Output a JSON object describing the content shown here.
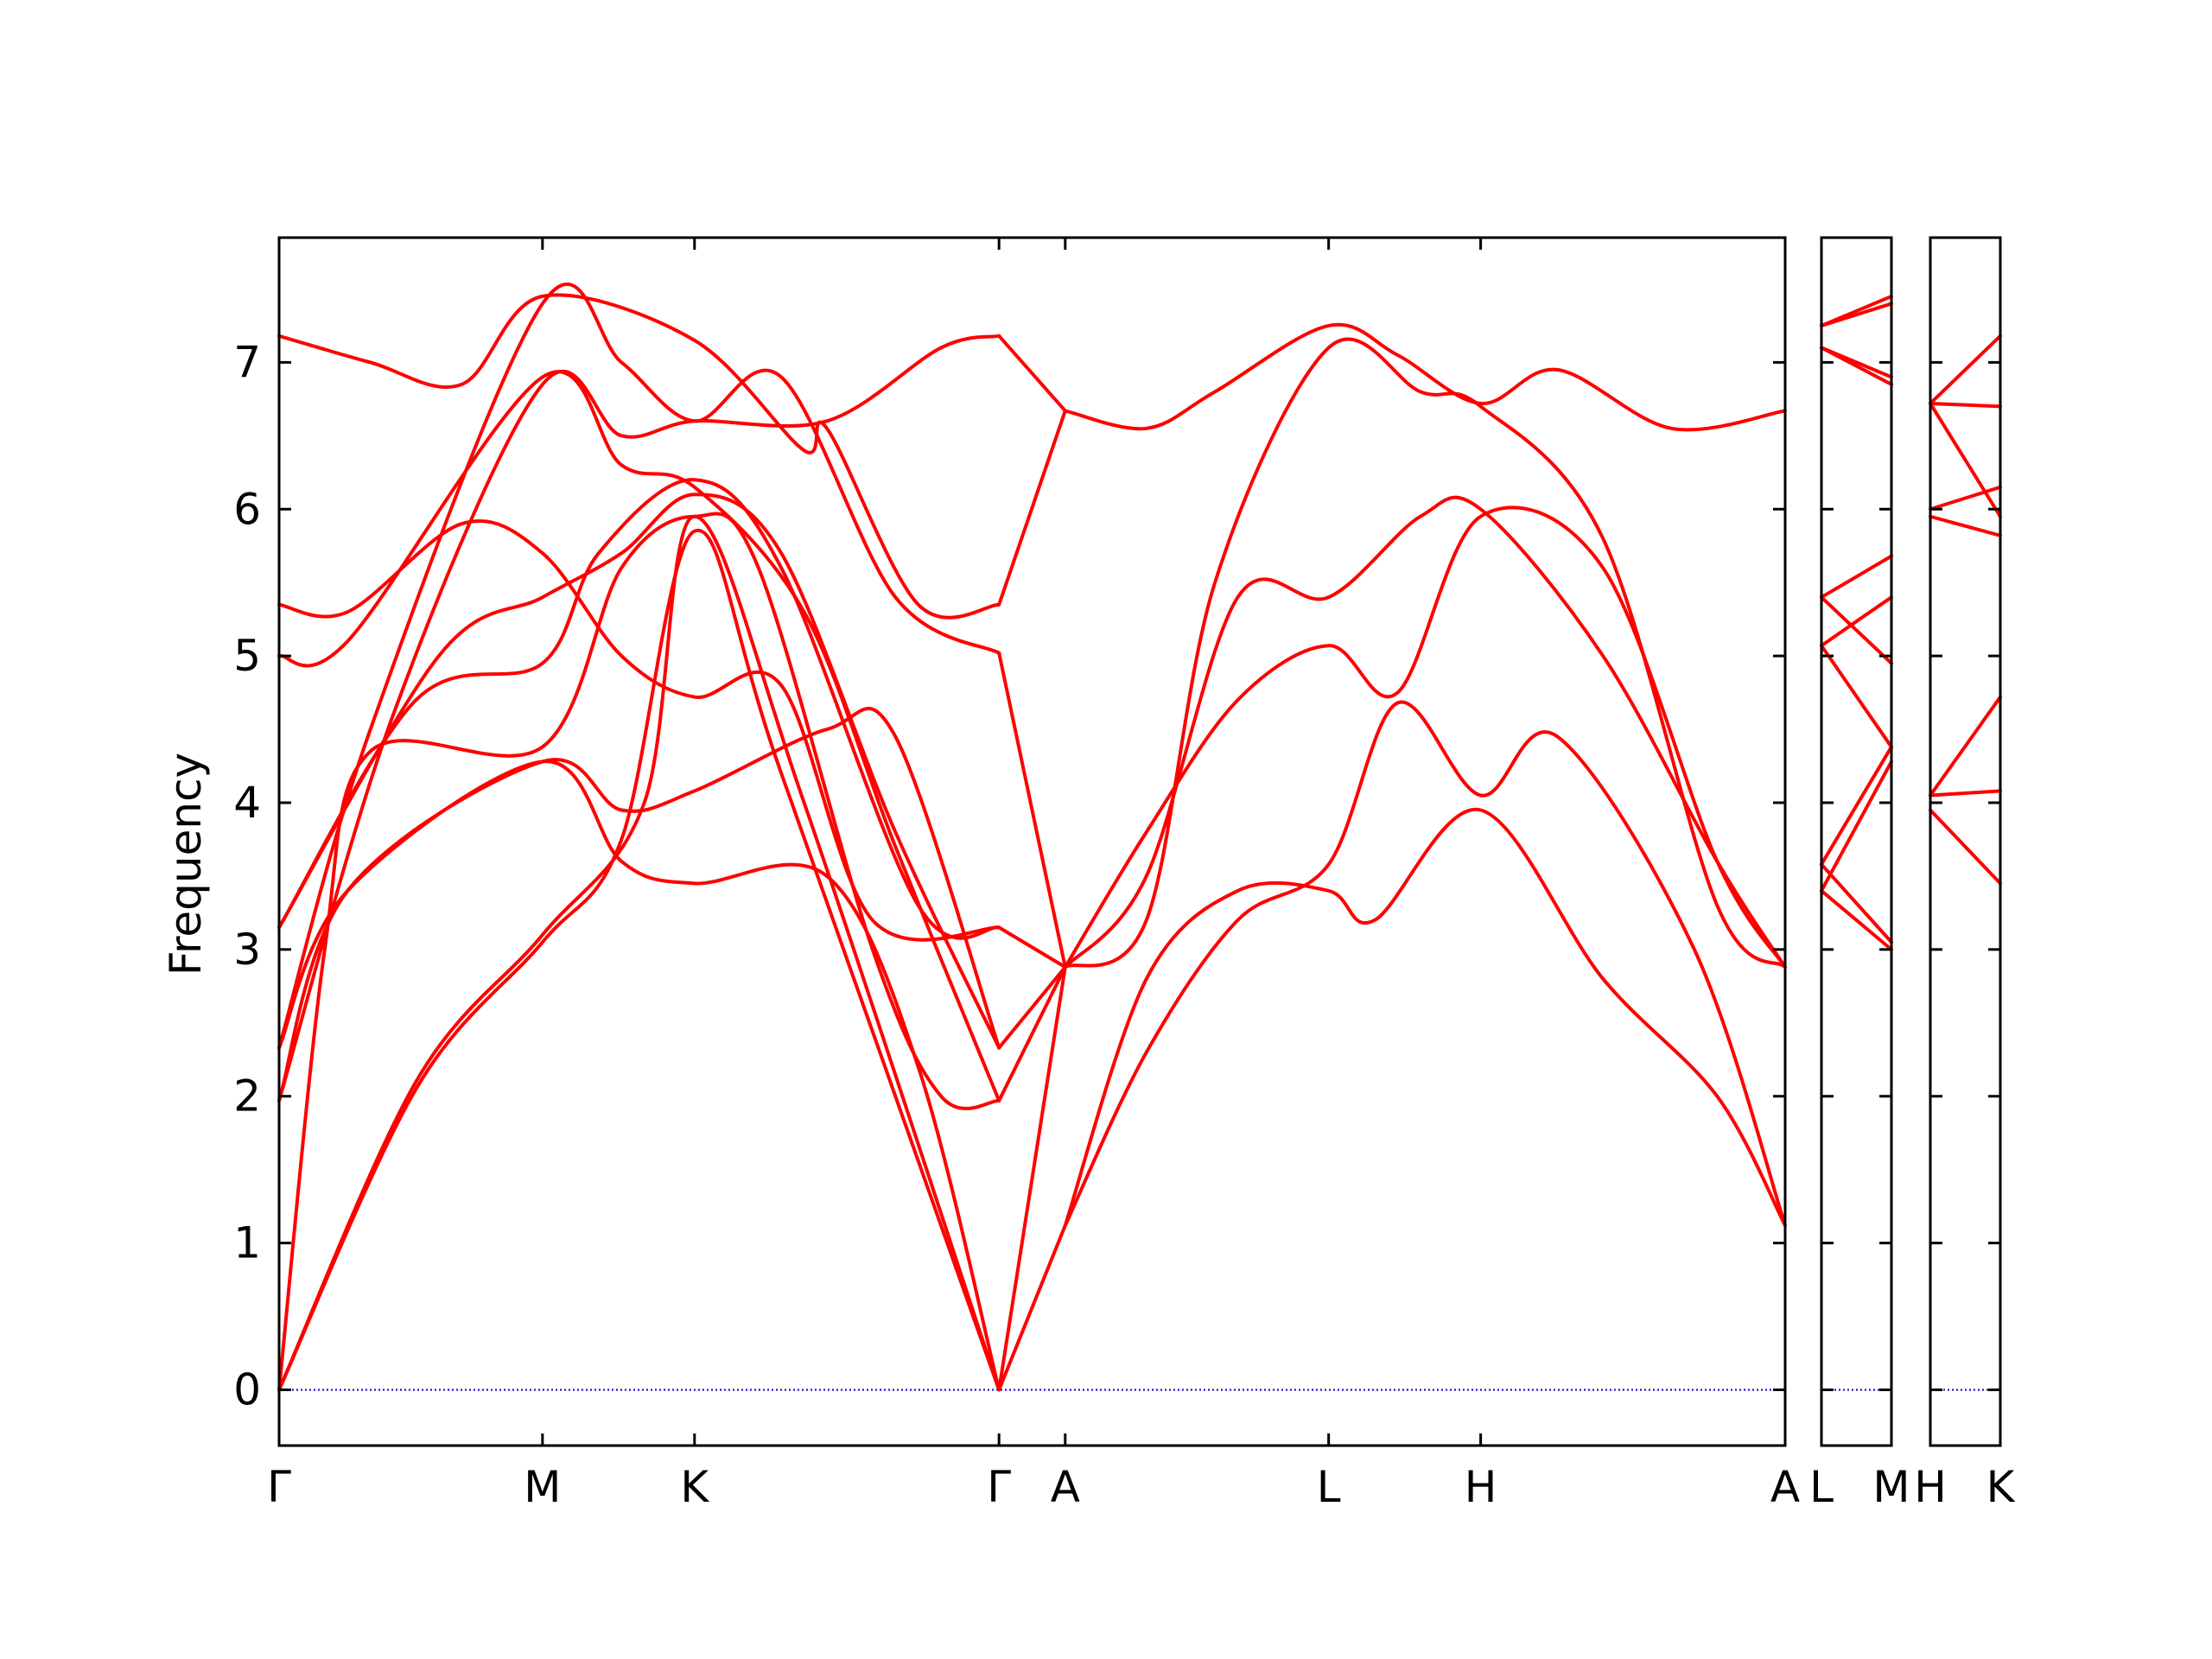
{
  "chart_data": {
    "type": "line",
    "title": "",
    "xlabel": "",
    "ylabel": "Frequency",
    "ylim": [
      -0.38,
      7.85
    ],
    "yticks": [
      0,
      1,
      2,
      3,
      4,
      5,
      6,
      7
    ],
    "grid": false,
    "legend": "none",
    "colors": {
      "bands": "#ff0000",
      "zero_line": "#0000cc",
      "axes": "#000000"
    },
    "panels": [
      {
        "labels": [
          "Γ",
          "M",
          "K",
          "Γ",
          "A",
          "L",
          "H",
          "A"
        ],
        "x": [
          0,
          0.577,
          0.91,
          1.577,
          1.722,
          2.299,
          2.632,
          3.299
        ]
      },
      {
        "labels": [
          "L",
          "M"
        ],
        "x": [
          0,
          0.145
        ]
      },
      {
        "labels": [
          "H",
          "K"
        ],
        "x": [
          0,
          0.145
        ]
      }
    ],
    "series": [
      {
        "panel": 0,
        "points": [
          [
            0,
            0
          ],
          [
            0.3,
            2.05
          ],
          [
            0.577,
            3.05
          ],
          [
            0.75,
            3.75
          ],
          [
            0.91,
            5.85
          ],
          [
            1.1,
            4.2
          ],
          [
            1.577,
            0
          ]
        ]
      },
      {
        "panel": 0,
        "points": [
          [
            0,
            0
          ],
          [
            0.3,
            2.1
          ],
          [
            0.577,
            3.1
          ],
          [
            0.8,
            4.0
          ],
          [
            0.91,
            5.95
          ],
          [
            1.15,
            4.0
          ],
          [
            1.577,
            0
          ]
        ]
      },
      {
        "panel": 0,
        "points": [
          [
            0,
            0
          ],
          [
            0.1,
            3.0
          ],
          [
            0.2,
            4.35
          ],
          [
            0.577,
            4.38
          ],
          [
            0.75,
            5.6
          ],
          [
            0.91,
            5.95
          ],
          [
            1.05,
            5.6
          ],
          [
            1.3,
            3.0
          ],
          [
            1.45,
            2.0
          ],
          [
            1.577,
            1.97
          ]
        ]
      },
      {
        "panel": 0,
        "points": [
          [
            0,
            1.97
          ],
          [
            0.15,
            3.4
          ],
          [
            0.577,
            4.28
          ],
          [
            0.75,
            3.95
          ],
          [
            0.91,
            4.08
          ],
          [
            1.2,
            4.5
          ],
          [
            1.35,
            4.45
          ],
          [
            1.577,
            2.33
          ]
        ]
      },
      {
        "panel": 0,
        "points": [
          [
            0,
            2.33
          ],
          [
            0.15,
            3.4
          ],
          [
            0.577,
            4.28
          ],
          [
            0.75,
            3.6
          ],
          [
            0.91,
            3.45
          ],
          [
            1.2,
            3.5
          ],
          [
            1.4,
            2.2
          ],
          [
            1.577,
            0
          ]
        ]
      },
      {
        "panel": 0,
        "points": [
          [
            0,
            3.15
          ],
          [
            0.3,
            4.7
          ],
          [
            0.577,
            4.95
          ],
          [
            0.7,
            5.7
          ],
          [
            0.91,
            6.2
          ],
          [
            1.1,
            5.6
          ],
          [
            1.4,
            3.3
          ],
          [
            1.577,
            3.15
          ]
        ]
      },
      {
        "panel": 0,
        "points": [
          [
            0,
            3.15
          ],
          [
            0.35,
            5.0
          ],
          [
            0.577,
            5.4
          ],
          [
            0.75,
            5.7
          ],
          [
            0.91,
            6.1
          ],
          [
            1.1,
            5.7
          ],
          [
            1.35,
            3.8
          ],
          [
            1.577,
            2.33
          ]
        ]
      },
      {
        "panel": 0,
        "points": [
          [
            0,
            5.0
          ],
          [
            0.15,
            5.1
          ],
          [
            0.577,
            6.9
          ],
          [
            0.75,
            6.3
          ],
          [
            0.91,
            6.15
          ],
          [
            1.15,
            5.3
          ],
          [
            1.35,
            3.7
          ],
          [
            1.577,
            1.97
          ]
        ]
      },
      {
        "panel": 0,
        "points": [
          [
            0,
            5.35
          ],
          [
            0.15,
            5.3
          ],
          [
            0.4,
            5.9
          ],
          [
            0.577,
            5.7
          ],
          [
            0.75,
            5.0
          ],
          [
            0.91,
            4.72
          ],
          [
            1.1,
            4.8
          ],
          [
            1.3,
            3.2
          ],
          [
            1.577,
            3.15
          ]
        ]
      },
      {
        "panel": 0,
        "points": [
          [
            0,
            7.18
          ],
          [
            0.2,
            7.0
          ],
          [
            0.4,
            6.85
          ],
          [
            0.577,
            7.45
          ],
          [
            0.91,
            7.15
          ],
          [
            1.15,
            6.4
          ],
          [
            1.2,
            6.55
          ],
          [
            1.4,
            5.35
          ],
          [
            1.577,
            5.35
          ]
        ]
      },
      {
        "panel": 0,
        "points": [
          [
            0,
            2.33
          ],
          [
            0.2,
            4.5
          ],
          [
            0.577,
            7.4
          ],
          [
            0.75,
            7.0
          ],
          [
            0.91,
            6.6
          ],
          [
            1.1,
            6.9
          ],
          [
            1.35,
            5.4
          ],
          [
            1.577,
            5.02
          ]
        ]
      },
      {
        "panel": 0,
        "points": [
          [
            0,
            1.97
          ],
          [
            0.25,
            4.6
          ],
          [
            0.577,
            6.85
          ],
          [
            0.75,
            6.5
          ],
          [
            0.91,
            6.6
          ],
          [
            1.2,
            6.6
          ],
          [
            1.45,
            7.1
          ],
          [
            1.577,
            7.18
          ]
        ]
      },
      {
        "panel": 0,
        "points": [
          [
            1.577,
            0
          ],
          [
            1.722,
            1.12
          ]
        ]
      },
      {
        "panel": 0,
        "points": [
          [
            1.577,
            1.97
          ],
          [
            1.722,
            2.88
          ]
        ]
      },
      {
        "panel": 0,
        "points": [
          [
            1.577,
            2.33
          ],
          [
            1.722,
            2.88
          ]
        ]
      },
      {
        "panel": 0,
        "points": [
          [
            1.577,
            3.15
          ],
          [
            1.722,
            2.88
          ]
        ]
      },
      {
        "panel": 0,
        "points": [
          [
            1.577,
            5.02
          ],
          [
            1.722,
            2.88
          ]
        ]
      },
      {
        "panel": 0,
        "points": [
          [
            1.577,
            5.35
          ],
          [
            1.722,
            6.67
          ]
        ]
      },
      {
        "panel": 0,
        "points": [
          [
            1.577,
            7.18
          ],
          [
            1.722,
            6.67
          ]
        ]
      },
      {
        "panel": 0,
        "points": [
          [
            1.577,
            0
          ],
          [
            1.722,
            2.88
          ]
        ]
      },
      {
        "panel": 0,
        "points": [
          [
            1.722,
            1.12
          ],
          [
            1.9,
            2.8
          ],
          [
            2.1,
            3.4
          ],
          [
            2.299,
            3.4
          ],
          [
            2.4,
            3.2
          ],
          [
            2.632,
            3.95
          ],
          [
            2.9,
            2.8
          ],
          [
            3.15,
            2.0
          ],
          [
            3.299,
            1.12
          ]
        ]
      },
      {
        "panel": 0,
        "points": [
          [
            1.722,
            1.12
          ],
          [
            1.9,
            2.3
          ],
          [
            2.1,
            3.2
          ],
          [
            2.299,
            3.58
          ],
          [
            2.45,
            4.68
          ],
          [
            2.632,
            4.05
          ],
          [
            2.8,
            4.45
          ],
          [
            3.1,
            3.0
          ],
          [
            3.299,
            1.12
          ]
        ]
      },
      {
        "panel": 0,
        "points": [
          [
            1.722,
            2.88
          ],
          [
            1.9,
            3.8
          ],
          [
            2.1,
            4.7
          ],
          [
            2.299,
            5.07
          ],
          [
            2.45,
            4.75
          ],
          [
            2.632,
            5.95
          ],
          [
            2.9,
            5.6
          ],
          [
            3.15,
            3.6
          ],
          [
            3.299,
            2.88
          ]
        ]
      },
      {
        "panel": 0,
        "points": [
          [
            1.722,
            2.88
          ],
          [
            1.9,
            3.5
          ],
          [
            2.1,
            5.4
          ],
          [
            2.299,
            5.4
          ],
          [
            2.5,
            5.95
          ],
          [
            2.632,
            6.0
          ],
          [
            2.9,
            5.0
          ],
          [
            3.15,
            3.6
          ],
          [
            3.299,
            2.88
          ]
        ]
      },
      {
        "panel": 0,
        "points": [
          [
            1.722,
            2.88
          ],
          [
            1.9,
            3.2
          ],
          [
            2.05,
            5.5
          ],
          [
            2.299,
            7.1
          ],
          [
            2.5,
            6.8
          ],
          [
            2.632,
            6.7
          ],
          [
            2.9,
            5.8
          ],
          [
            3.15,
            3.3
          ],
          [
            3.299,
            2.88
          ]
        ]
      },
      {
        "panel": 0,
        "points": [
          [
            1.722,
            6.67
          ],
          [
            1.9,
            6.55
          ],
          [
            2.05,
            6.8
          ],
          [
            2.299,
            7.25
          ],
          [
            2.45,
            7.05
          ],
          [
            2.632,
            6.72
          ],
          [
            2.8,
            6.95
          ],
          [
            3.05,
            6.55
          ],
          [
            3.299,
            6.67
          ]
        ]
      },
      {
        "panel": 1,
        "points": [
          [
            0,
            7.25
          ],
          [
            0.145,
            7.45
          ]
        ]
      },
      {
        "panel": 1,
        "points": [
          [
            0,
            7.25
          ],
          [
            0.145,
            7.4
          ]
        ]
      },
      {
        "panel": 1,
        "points": [
          [
            0,
            7.1
          ],
          [
            0.145,
            6.9
          ]
        ]
      },
      {
        "panel": 1,
        "points": [
          [
            0,
            7.1
          ],
          [
            0.145,
            6.85
          ]
        ]
      },
      {
        "panel": 1,
        "points": [
          [
            0,
            5.4
          ],
          [
            0.145,
            5.68
          ]
        ]
      },
      {
        "panel": 1,
        "points": [
          [
            0,
            5.07
          ],
          [
            0.145,
            5.4
          ]
        ]
      },
      {
        "panel": 1,
        "points": [
          [
            0,
            5.4
          ],
          [
            0.145,
            4.95
          ]
        ]
      },
      {
        "panel": 1,
        "points": [
          [
            0,
            5.07
          ],
          [
            0.145,
            4.38
          ]
        ]
      },
      {
        "panel": 1,
        "points": [
          [
            0,
            3.58
          ],
          [
            0.145,
            4.38
          ]
        ]
      },
      {
        "panel": 1,
        "points": [
          [
            0,
            3.4
          ],
          [
            0.145,
            4.28
          ]
        ]
      },
      {
        "panel": 1,
        "points": [
          [
            0,
            3.58
          ],
          [
            0.145,
            3.05
          ]
        ]
      },
      {
        "panel": 1,
        "points": [
          [
            0,
            3.4
          ],
          [
            0.145,
            3.0
          ]
        ]
      },
      {
        "panel": 2,
        "points": [
          [
            0,
            6.72
          ],
          [
            0.145,
            7.18
          ]
        ]
      },
      {
        "panel": 2,
        "points": [
          [
            0,
            6.72
          ],
          [
            0.145,
            6.7
          ]
        ]
      },
      {
        "panel": 2,
        "points": [
          [
            0,
            6.72
          ],
          [
            0.145,
            5.95
          ]
        ]
      },
      {
        "panel": 2,
        "points": [
          [
            0,
            6.0
          ],
          [
            0.145,
            6.15
          ]
        ]
      },
      {
        "panel": 2,
        "points": [
          [
            0,
            5.95
          ],
          [
            0.145,
            5.82
          ]
        ]
      },
      {
        "panel": 2,
        "points": [
          [
            0,
            4.05
          ],
          [
            0.145,
            4.72
          ]
        ]
      },
      {
        "panel": 2,
        "points": [
          [
            0,
            4.05
          ],
          [
            0.145,
            4.08
          ]
        ]
      },
      {
        "panel": 2,
        "points": [
          [
            0,
            3.95
          ],
          [
            0.145,
            3.45
          ]
        ]
      }
    ]
  }
}
